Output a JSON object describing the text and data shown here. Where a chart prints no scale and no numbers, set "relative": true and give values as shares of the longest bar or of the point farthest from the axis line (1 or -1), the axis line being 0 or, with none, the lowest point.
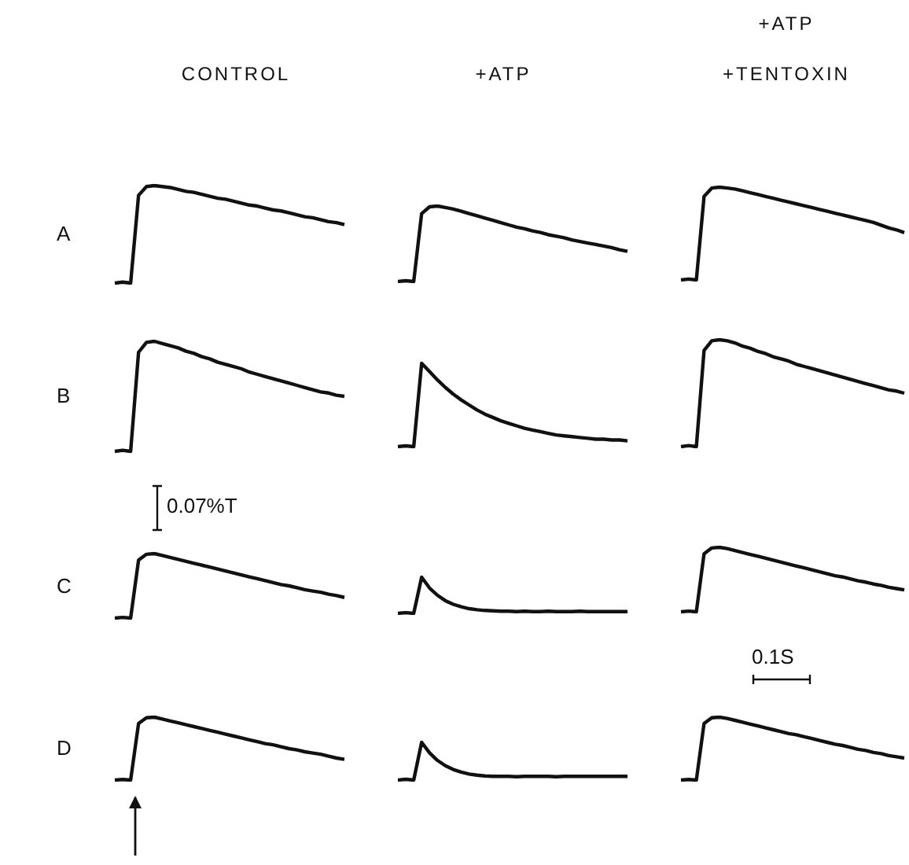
{
  "chart_data": [
    {
      "type": "line",
      "title": "CONTROL",
      "ylabel": "A",
      "relative": true,
      "color": "#111111",
      "categories": [
        null,
        null,
        null,
        null,
        null,
        null,
        null,
        null,
        null,
        null,
        null,
        null,
        null,
        null,
        null,
        null,
        null,
        null,
        null,
        null,
        null,
        null,
        null,
        null,
        null,
        null,
        null,
        null,
        null,
        null
      ],
      "values": [
        0,
        0.01,
        0,
        0.9,
        0.99,
        1,
        0.99,
        0.98,
        0.96,
        0.94,
        0.93,
        0.91,
        0.89,
        0.87,
        0.86,
        0.84,
        0.82,
        0.8,
        0.79,
        0.77,
        0.75,
        0.74,
        0.72,
        0.7,
        0.68,
        0.67,
        0.65,
        0.63,
        0.62,
        0.6
      ]
    },
    {
      "type": "line",
      "title": "+ATP",
      "relative": true,
      "color": "#111111",
      "categories": [
        null,
        null,
        null,
        null,
        null,
        null,
        null,
        null,
        null,
        null,
        null,
        null,
        null,
        null,
        null,
        null,
        null,
        null,
        null,
        null,
        null,
        null,
        null,
        null,
        null,
        null,
        null,
        null,
        null,
        null
      ],
      "values": [
        0,
        0.01,
        0,
        0.9,
        0.99,
        1,
        0.98,
        0.96,
        0.93,
        0.9,
        0.87,
        0.84,
        0.81,
        0.78,
        0.75,
        0.72,
        0.7,
        0.67,
        0.65,
        0.62,
        0.6,
        0.58,
        0.55,
        0.53,
        0.51,
        0.49,
        0.47,
        0.45,
        0.42,
        0.4
      ]
    },
    {
      "type": "line",
      "title": "+ATP",
      "subtitle": "+TENTOXIN",
      "relative": true,
      "color": "#111111",
      "categories": [
        null,
        null,
        null,
        null,
        null,
        null,
        null,
        null,
        null,
        null,
        null,
        null,
        null,
        null,
        null,
        null,
        null,
        null,
        null,
        null,
        null,
        null,
        null,
        null,
        null,
        null,
        null,
        null,
        null,
        null
      ],
      "values": [
        0,
        0.01,
        0,
        0.9,
        0.99,
        1,
        0.99,
        0.98,
        0.96,
        0.94,
        0.92,
        0.9,
        0.88,
        0.86,
        0.84,
        0.82,
        0.8,
        0.78,
        0.76,
        0.74,
        0.72,
        0.7,
        0.68,
        0.66,
        0.64,
        0.62,
        0.59,
        0.56,
        0.54,
        0.51
      ]
    },
    {
      "type": "line",
      "ylabel": "B",
      "relative": true,
      "color": "#111111",
      "categories": [
        null,
        null,
        null,
        null,
        null,
        null,
        null,
        null,
        null,
        null,
        null,
        null,
        null,
        null,
        null,
        null,
        null,
        null,
        null,
        null,
        null,
        null,
        null,
        null,
        null,
        null,
        null,
        null,
        null,
        null
      ],
      "values": [
        0,
        0.01,
        0,
        0.9,
        0.99,
        1,
        0.98,
        0.96,
        0.94,
        0.91,
        0.89,
        0.86,
        0.84,
        0.81,
        0.79,
        0.77,
        0.75,
        0.72,
        0.7,
        0.68,
        0.66,
        0.64,
        0.62,
        0.6,
        0.58,
        0.56,
        0.54,
        0.53,
        0.51,
        0.5
      ]
    },
    {
      "type": "line",
      "relative": true,
      "color": "#111111",
      "categories": [
        null,
        null,
        null,
        null,
        null,
        null,
        null,
        null,
        null,
        null,
        null,
        null,
        null,
        null,
        null,
        null,
        null,
        null,
        null,
        null,
        null,
        null,
        null,
        null,
        null,
        null,
        null,
        null,
        null,
        null
      ],
      "values": [
        0,
        0.01,
        0,
        1,
        0.9,
        0.8,
        0.71,
        0.63,
        0.56,
        0.5,
        0.44,
        0.39,
        0.35,
        0.31,
        0.28,
        0.25,
        0.22,
        0.2,
        0.18,
        0.16,
        0.14,
        0.13,
        0.12,
        0.11,
        0.1,
        0.09,
        0.09,
        0.08,
        0.08,
        0.07
      ]
    },
    {
      "type": "line",
      "relative": true,
      "color": "#111111",
      "categories": [
        null,
        null,
        null,
        null,
        null,
        null,
        null,
        null,
        null,
        null,
        null,
        null,
        null,
        null,
        null,
        null,
        null,
        null,
        null,
        null,
        null,
        null,
        null,
        null,
        null,
        null,
        null,
        null,
        null,
        null
      ],
      "values": [
        0,
        0.01,
        0,
        0.9,
        0.99,
        1,
        0.99,
        0.97,
        0.94,
        0.92,
        0.89,
        0.87,
        0.84,
        0.82,
        0.8,
        0.77,
        0.75,
        0.73,
        0.71,
        0.69,
        0.67,
        0.65,
        0.63,
        0.61,
        0.59,
        0.57,
        0.55,
        0.53,
        0.52,
        0.5
      ]
    },
    {
      "type": "line",
      "ylabel": "C",
      "annotations": [
        "0.07%T"
      ],
      "relative": true,
      "color": "#111111",
      "categories": [
        null,
        null,
        null,
        null,
        null,
        null,
        null,
        null,
        null,
        null,
        null,
        null,
        null,
        null,
        null,
        null,
        null,
        null,
        null,
        null,
        null,
        null,
        null,
        null,
        null,
        null,
        null,
        null,
        null,
        null
      ],
      "values": [
        0,
        0.01,
        0,
        0.9,
        0.99,
        1,
        0.97,
        0.94,
        0.91,
        0.88,
        0.85,
        0.82,
        0.79,
        0.76,
        0.73,
        0.7,
        0.67,
        0.64,
        0.61,
        0.58,
        0.55,
        0.52,
        0.5,
        0.47,
        0.44,
        0.42,
        0.4,
        0.37,
        0.35,
        0.32
      ]
    },
    {
      "type": "line",
      "relative": true,
      "color": "#111111",
      "categories": [
        null,
        null,
        null,
        null,
        null,
        null,
        null,
        null,
        null,
        null,
        null,
        null,
        null,
        null,
        null,
        null,
        null,
        null,
        null,
        null,
        null,
        null,
        null,
        null,
        null,
        null,
        null,
        null,
        null,
        null
      ],
      "values": [
        0,
        0.02,
        0,
        1,
        0.7,
        0.5,
        0.35,
        0.25,
        0.18,
        0.13,
        0.1,
        0.08,
        0.07,
        0.06,
        0.06,
        0.05,
        0.06,
        0.05,
        0.05,
        0.06,
        0.05,
        0.05,
        0.05,
        0.06,
        0.05,
        0.05,
        0.05,
        0.05,
        0.05,
        0.05
      ]
    },
    {
      "type": "line",
      "annotations": [
        "0.1S"
      ],
      "relative": true,
      "color": "#111111",
      "categories": [
        null,
        null,
        null,
        null,
        null,
        null,
        null,
        null,
        null,
        null,
        null,
        null,
        null,
        null,
        null,
        null,
        null,
        null,
        null,
        null,
        null,
        null,
        null,
        null,
        null,
        null,
        null,
        null,
        null,
        null
      ],
      "values": [
        0,
        0.01,
        0,
        0.9,
        0.99,
        1,
        0.98,
        0.95,
        0.92,
        0.89,
        0.86,
        0.83,
        0.8,
        0.77,
        0.74,
        0.71,
        0.68,
        0.65,
        0.62,
        0.59,
        0.56,
        0.54,
        0.51,
        0.48,
        0.46,
        0.43,
        0.41,
        0.38,
        0.36,
        0.34
      ]
    },
    {
      "type": "line",
      "ylabel": "D",
      "relative": true,
      "color": "#111111",
      "categories": [
        null,
        null,
        null,
        null,
        null,
        null,
        null,
        null,
        null,
        null,
        null,
        null,
        null,
        null,
        null,
        null,
        null,
        null,
        null,
        null,
        null,
        null,
        null,
        null,
        null,
        null,
        null,
        null,
        null,
        null
      ],
      "values": [
        0,
        0.01,
        0,
        0.9,
        0.99,
        1,
        0.97,
        0.94,
        0.91,
        0.88,
        0.85,
        0.82,
        0.79,
        0.76,
        0.73,
        0.7,
        0.67,
        0.64,
        0.61,
        0.58,
        0.56,
        0.53,
        0.5,
        0.48,
        0.45,
        0.43,
        0.41,
        0.38,
        0.35,
        0.33
      ]
    },
    {
      "type": "line",
      "relative": true,
      "color": "#111111",
      "categories": [
        null,
        null,
        null,
        null,
        null,
        null,
        null,
        null,
        null,
        null,
        null,
        null,
        null,
        null,
        null,
        null,
        null,
        null,
        null,
        null,
        null,
        null,
        null,
        null,
        null,
        null,
        null,
        null,
        null,
        null
      ],
      "values": [
        0,
        0.02,
        0,
        1,
        0.72,
        0.52,
        0.38,
        0.28,
        0.21,
        0.16,
        0.13,
        0.11,
        0.1,
        0.1,
        0.1,
        0.09,
        0.1,
        0.1,
        0.1,
        0.1,
        0.09,
        0.1,
        0.1,
        0.1,
        0.1,
        0.1,
        0.1,
        0.1,
        0.1,
        0.1
      ]
    },
    {
      "type": "line",
      "relative": true,
      "color": "#111111",
      "categories": [
        null,
        null,
        null,
        null,
        null,
        null,
        null,
        null,
        null,
        null,
        null,
        null,
        null,
        null,
        null,
        null,
        null,
        null,
        null,
        null,
        null,
        null,
        null,
        null,
        null,
        null,
        null,
        null,
        null,
        null
      ],
      "values": [
        0,
        0.01,
        0,
        0.9,
        0.99,
        1,
        0.98,
        0.95,
        0.92,
        0.89,
        0.86,
        0.83,
        0.8,
        0.77,
        0.74,
        0.72,
        0.69,
        0.66,
        0.63,
        0.6,
        0.57,
        0.55,
        0.52,
        0.49,
        0.47,
        0.44,
        0.42,
        0.39,
        0.37,
        0.35
      ]
    }
  ]
}
